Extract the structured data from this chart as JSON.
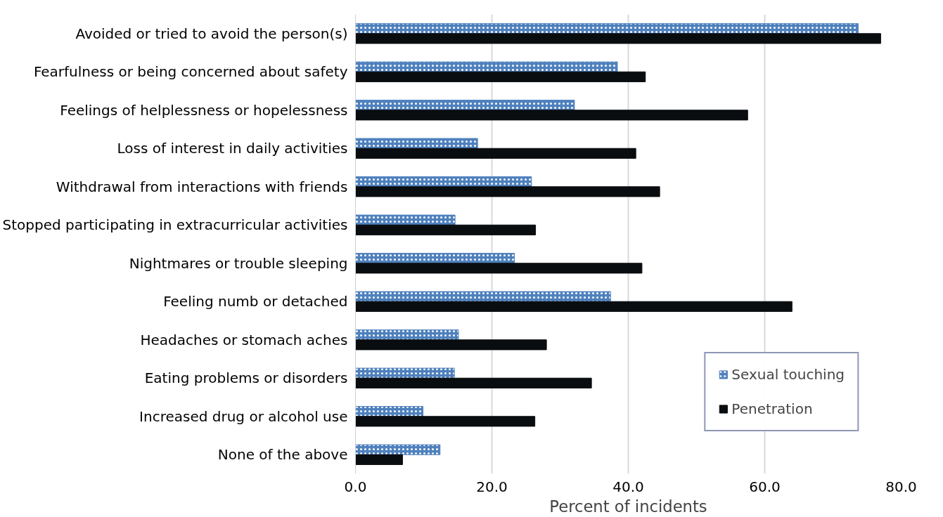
{
  "chart_data": {
    "type": "bar",
    "orientation": "horizontal",
    "xlabel": "Percent of incidents",
    "categories": [
      "Avoided or tried to avoid the person(s)",
      "Fearfulness or being concerned about safety",
      "Feelings of helplessness or hopelessness",
      "Loss of interest in daily activities",
      "Withdrawal from interactions with friends",
      "Stopped participating in extracurricular activities",
      "Nightmares or trouble sleeping",
      "Feeling numb or detached",
      "Headaches or stomach aches",
      "Eating problems or disorders",
      "Increased drug or alcohol use",
      "None of the above"
    ],
    "series": [
      {
        "name": "Sexual touching",
        "color": "#4f81bd",
        "values": [
          73.7,
          38.4,
          32.1,
          17.9,
          25.8,
          14.6,
          23.3,
          37.4,
          15.1,
          14.5,
          9.9,
          12.4
        ]
      },
      {
        "name": "Penetration",
        "color": "#0a0d10",
        "values": [
          77.0,
          42.5,
          57.5,
          41.1,
          44.6,
          26.4,
          42.0,
          64.0,
          28.0,
          34.6,
          26.3,
          6.9
        ]
      }
    ],
    "xlim": [
      0,
      80
    ],
    "xticks": [
      {
        "value": 0,
        "label": "0.0"
      },
      {
        "value": 20,
        "label": "20.0"
      },
      {
        "value": 40,
        "label": "40.0"
      },
      {
        "value": 60,
        "label": "60.0"
      },
      {
        "value": 80,
        "label": "80.0"
      }
    ],
    "grid": "x",
    "legend": "bottom right"
  }
}
